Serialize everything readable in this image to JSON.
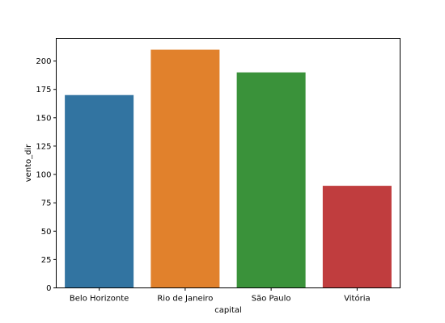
{
  "chart_data": {
    "type": "bar",
    "categories": [
      "Belo Horizonte",
      "Rio de Janeiro",
      "São Paulo",
      "Vitória"
    ],
    "values": [
      170,
      210,
      190,
      90
    ],
    "colors": [
      "#3274a1",
      "#e1812c",
      "#3a923a",
      "#c03d3e"
    ],
    "xlabel": "capital",
    "ylabel": "vento_dir",
    "ylim": [
      0,
      220
    ],
    "yticks": [
      0,
      25,
      50,
      75,
      100,
      125,
      150,
      175,
      200
    ],
    "grid": false,
    "legend": "none"
  }
}
